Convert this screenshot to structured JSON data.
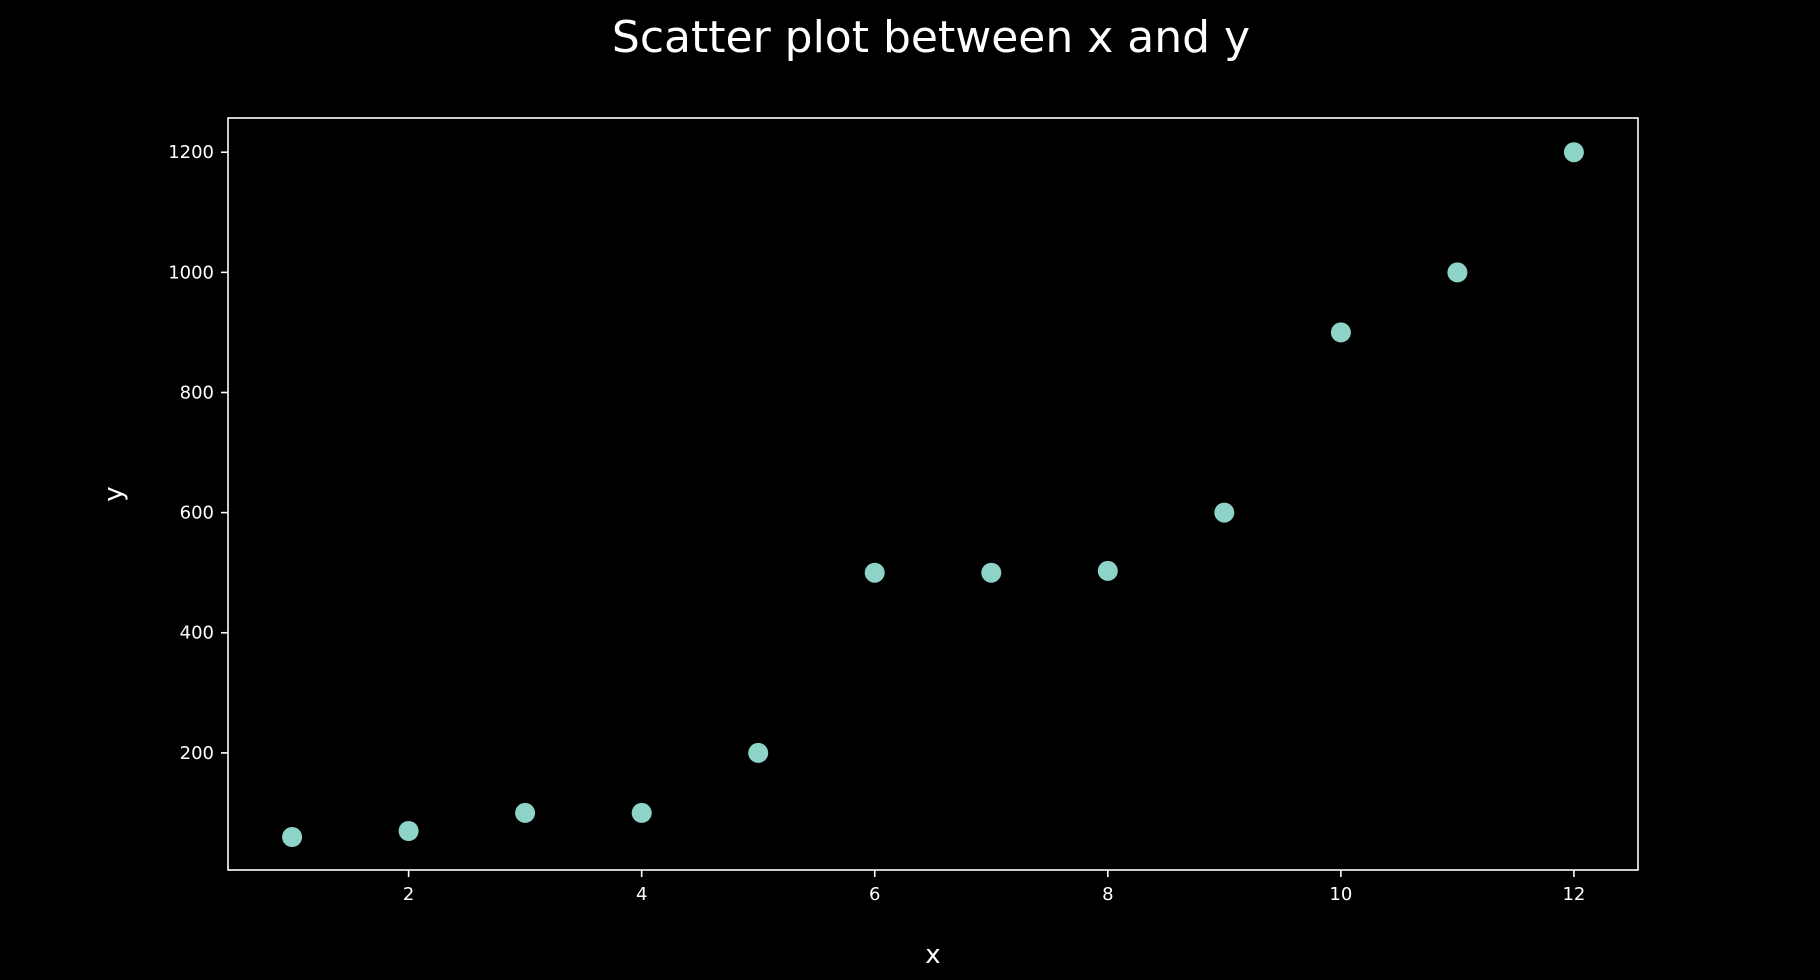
{
  "chart_data": {
    "type": "scatter",
    "title": "Scatter plot between x and y",
    "xlabel": "x",
    "ylabel": "y",
    "x": [
      1,
      2,
      3,
      4,
      5,
      6,
      7,
      8,
      9,
      10,
      11,
      12
    ],
    "y": [
      60,
      70,
      100,
      100,
      200,
      500,
      500,
      503,
      600,
      900,
      1000,
      1200
    ],
    "xlim": [
      0.45,
      12.55
    ],
    "ylim": [
      5,
      1257
    ],
    "xticks": [
      2,
      4,
      6,
      8,
      10,
      12
    ],
    "yticks": [
      200,
      400,
      600,
      800,
      1000,
      1200
    ],
    "grid": false,
    "colors": {
      "background": "#000000",
      "marker": "#8dd3c7",
      "axes": "#ffffff"
    }
  }
}
